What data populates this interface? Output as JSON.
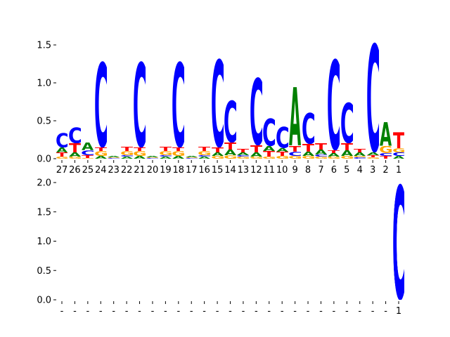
{
  "chart_data": [
    {
      "type": "sequence-logo",
      "title": "",
      "xlabel": "",
      "ylabel": "",
      "ylim": [
        0,
        1.6
      ],
      "yticks": [
        "0.0",
        "0.5",
        "1.0",
        "1.5"
      ],
      "ytick_values": [
        0,
        0.5,
        1.0,
        1.5
      ],
      "x_reversed": true,
      "grid": false,
      "positions": [
        {
          "label": "27",
          "stack": [
            [
              "G",
              0.03
            ],
            [
              "T",
              0.05
            ],
            [
              "A",
              0.07
            ],
            [
              "C",
              0.19
            ]
          ]
        },
        {
          "label": "26",
          "stack": [
            [
              "G",
              0.03
            ],
            [
              "A",
              0.05
            ],
            [
              "T",
              0.12
            ],
            [
              "C",
              0.22
            ]
          ]
        },
        {
          "label": "25",
          "stack": [
            [
              "G",
              0.01
            ],
            [
              "T",
              0.04
            ],
            [
              "C",
              0.06
            ],
            [
              "A",
              0.1
            ]
          ]
        },
        {
          "label": "24",
          "stack": [
            [
              "A",
              0.04
            ],
            [
              "G",
              0.06
            ],
            [
              "T",
              0.05
            ],
            [
              "C",
              1.15
            ]
          ]
        },
        {
          "label": "23",
          "stack": [
            [
              "C",
              0.01
            ],
            [
              "G",
              0.01
            ],
            [
              "A",
              0.02
            ]
          ]
        },
        {
          "label": "22",
          "stack": [
            [
              "A",
              0.03
            ],
            [
              "C",
              0.02
            ],
            [
              "G",
              0.05
            ],
            [
              "T",
              0.06
            ]
          ]
        },
        {
          "label": "21",
          "stack": [
            [
              "A",
              0.04
            ],
            [
              "G",
              0.06
            ],
            [
              "T",
              0.05
            ],
            [
              "C",
              1.15
            ]
          ]
        },
        {
          "label": "20",
          "stack": [
            [
              "C",
              0.01
            ],
            [
              "G",
              0.01
            ],
            [
              "A",
              0.02
            ]
          ]
        },
        {
          "label": "19",
          "stack": [
            [
              "A",
              0.03
            ],
            [
              "C",
              0.02
            ],
            [
              "G",
              0.05
            ],
            [
              "T",
              0.06
            ]
          ]
        },
        {
          "label": "18",
          "stack": [
            [
              "A",
              0.04
            ],
            [
              "G",
              0.06
            ],
            [
              "T",
              0.05
            ],
            [
              "C",
              1.15
            ]
          ]
        },
        {
          "label": "17",
          "stack": [
            [
              "C",
              0.01
            ],
            [
              "G",
              0.01
            ],
            [
              "A",
              0.02
            ]
          ]
        },
        {
          "label": "16",
          "stack": [
            [
              "A",
              0.03
            ],
            [
              "C",
              0.02
            ],
            [
              "G",
              0.05
            ],
            [
              "T",
              0.06
            ]
          ]
        },
        {
          "label": "15",
          "stack": [
            [
              "G",
              0.04
            ],
            [
              "A",
              0.04
            ],
            [
              "T",
              0.07
            ],
            [
              "C",
              1.18
            ]
          ]
        },
        {
          "label": "14",
          "stack": [
            [
              "G",
              0.05
            ],
            [
              "A",
              0.07
            ],
            [
              "T",
              0.09
            ],
            [
              "C",
              0.57
            ]
          ]
        },
        {
          "label": "13",
          "stack": [
            [
              "G",
              0.03
            ],
            [
              "C",
              0.02
            ],
            [
              "A",
              0.03
            ],
            [
              "T",
              0.05
            ]
          ]
        },
        {
          "label": "12",
          "stack": [
            [
              "G",
              0.03
            ],
            [
              "A",
              0.05
            ],
            [
              "T",
              0.1
            ],
            [
              "C",
              0.9
            ]
          ]
        },
        {
          "label": "11",
          "stack": [
            [
              "G",
              0.03
            ],
            [
              "T",
              0.07
            ],
            [
              "A",
              0.07
            ],
            [
              "C",
              0.37
            ]
          ]
        },
        {
          "label": "10",
          "stack": [
            [
              "G",
              0.04
            ],
            [
              "T",
              0.05
            ],
            [
              "A",
              0.05
            ],
            [
              "C",
              0.29
            ]
          ]
        },
        {
          "label": "9",
          "stack": [
            [
              "G",
              0.04
            ],
            [
              "C",
              0.05
            ],
            [
              "T",
              0.08
            ],
            [
              "A",
              0.77
            ]
          ]
        },
        {
          "label": "8",
          "stack": [
            [
              "G",
              0.04
            ],
            [
              "A",
              0.05
            ],
            [
              "T",
              0.1
            ],
            [
              "C",
              0.42
            ]
          ]
        },
        {
          "label": "7",
          "stack": [
            [
              "G",
              0.03
            ],
            [
              "C",
              0.03
            ],
            [
              "A",
              0.06
            ],
            [
              "T",
              0.08
            ]
          ]
        },
        {
          "label": "6",
          "stack": [
            [
              "G",
              0.03
            ],
            [
              "A",
              0.04
            ],
            [
              "T",
              0.04
            ],
            [
              "C",
              1.22
            ]
          ]
        },
        {
          "label": "5",
          "stack": [
            [
              "G",
              0.04
            ],
            [
              "A",
              0.07
            ],
            [
              "T",
              0.09
            ],
            [
              "C",
              0.55
            ]
          ]
        },
        {
          "label": "4",
          "stack": [
            [
              "C",
              0.02
            ],
            [
              "G",
              0.02
            ],
            [
              "A",
              0.04
            ],
            [
              "T",
              0.05
            ]
          ]
        },
        {
          "label": "3",
          "stack": [
            [
              "G",
              0.02
            ],
            [
              "T",
              0.03
            ],
            [
              "A",
              0.03
            ],
            [
              "C",
              1.47
            ]
          ]
        },
        {
          "label": "2",
          "stack": [
            [
              "T",
              0.04
            ],
            [
              "C",
              0.03
            ],
            [
              "G",
              0.1
            ],
            [
              "A",
              0.31
            ]
          ]
        },
        {
          "label": "1",
          "stack": [
            [
              "A",
              0.04
            ],
            [
              "C",
              0.04
            ],
            [
              "G",
              0.06
            ],
            [
              "T",
              0.21
            ]
          ]
        }
      ]
    },
    {
      "type": "sequence-logo",
      "title": "",
      "xlabel": "",
      "ylabel": "",
      "ylim": [
        0,
        2.0
      ],
      "yticks": [
        "0.0",
        "0.5",
        "1.0",
        "1.5",
        "2.0"
      ],
      "ytick_values": [
        0,
        0.5,
        1.0,
        1.5,
        2.0
      ],
      "x_reversed": true,
      "grid": false,
      "positions": [
        {
          "label": "-",
          "stack": []
        },
        {
          "label": "-",
          "stack": []
        },
        {
          "label": "-",
          "stack": []
        },
        {
          "label": "-",
          "stack": []
        },
        {
          "label": "-",
          "stack": []
        },
        {
          "label": "-",
          "stack": []
        },
        {
          "label": "-",
          "stack": []
        },
        {
          "label": "-",
          "stack": []
        },
        {
          "label": "-",
          "stack": []
        },
        {
          "label": "-",
          "stack": []
        },
        {
          "label": "-",
          "stack": []
        },
        {
          "label": "-",
          "stack": []
        },
        {
          "label": "-",
          "stack": []
        },
        {
          "label": "-",
          "stack": []
        },
        {
          "label": "-",
          "stack": []
        },
        {
          "label": "-",
          "stack": []
        },
        {
          "label": "-",
          "stack": []
        },
        {
          "label": "-",
          "stack": []
        },
        {
          "label": "-",
          "stack": []
        },
        {
          "label": "-",
          "stack": []
        },
        {
          "label": "-",
          "stack": []
        },
        {
          "label": "-",
          "stack": []
        },
        {
          "label": "-",
          "stack": []
        },
        {
          "label": "-",
          "stack": []
        },
        {
          "label": "-",
          "stack": []
        },
        {
          "label": "-",
          "stack": []
        },
        {
          "label": "1",
          "stack": [
            [
              "C",
              2.0
            ]
          ]
        }
      ]
    }
  ],
  "colors": {
    "A": "#008000",
    "C": "#0000ff",
    "G": "#ffa500",
    "T": "#ff0000"
  }
}
